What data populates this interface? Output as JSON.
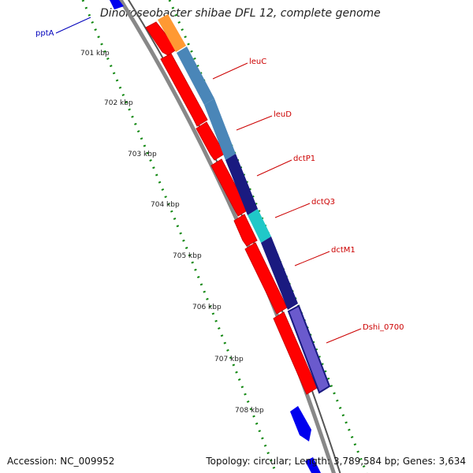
{
  "title": "Dinoroseobacter shibae DFL 12, complete genome",
  "footer": {
    "accession": "Accession: NC_009952",
    "topology": "Topology: circular; Length: 3,789,584 bp; Genes: 3,634"
  },
  "colors": {
    "reverse_cds": "#ff0000",
    "backbone": "#888888",
    "tick": "#118811",
    "gene_label": "#cc0000",
    "blue_label": "#0000bb"
  },
  "tick_labels": [
    "701 kbp",
    "702 kbp",
    "703 kbp",
    "704 kbp",
    "705 kbp",
    "706 kbp",
    "707 kbp",
    "708 kbp"
  ],
  "genes": [
    {
      "name": "leuC",
      "color": "#4a86b8"
    },
    {
      "name": "leuD",
      "color": "#4a86b8"
    },
    {
      "name": "dctP1",
      "color": "#1a1a80"
    },
    {
      "name": "dctQ3",
      "color": "#20c8c8"
    },
    {
      "name": "dctM1",
      "color": "#1a1a80"
    },
    {
      "name": "Dshi_0700",
      "color": "#6a5acd"
    }
  ],
  "extra_labels": {
    "pptA": "pptA"
  }
}
